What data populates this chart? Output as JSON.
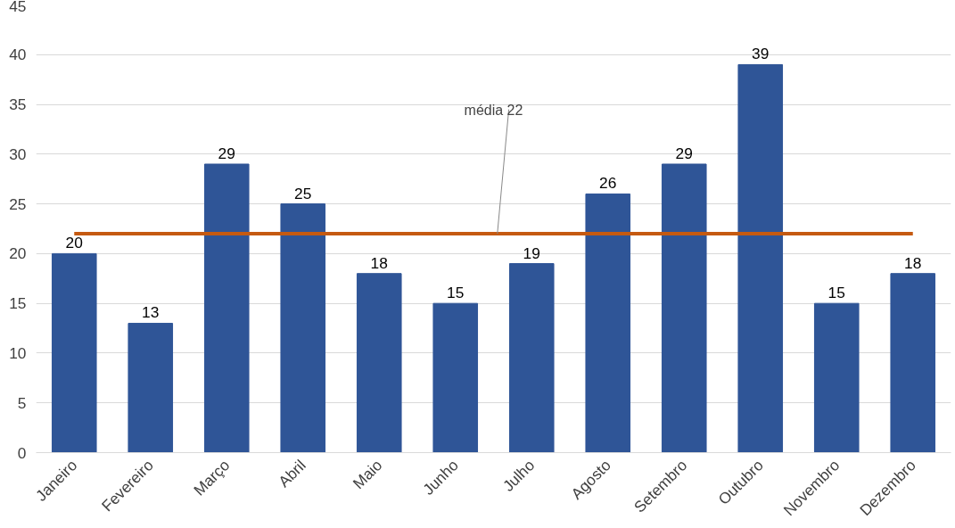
{
  "chart_data": {
    "type": "bar",
    "categories": [
      "Janeiro",
      "Fevereiro",
      "Março",
      "Abril",
      "Maio",
      "Junho",
      "Julho",
      "Agosto",
      "Setembro",
      "Outubro",
      "Novembro",
      "Dezembro"
    ],
    "values": [
      20,
      13,
      29,
      25,
      18,
      15,
      19,
      26,
      29,
      39,
      15,
      18
    ],
    "color": "#2f5597",
    "ylim": [
      0,
      45
    ],
    "yticks": [
      0,
      5,
      10,
      15,
      20,
      25,
      30,
      35,
      40,
      45
    ],
    "grid": "y",
    "data_labels": true,
    "ref_lines": [
      {
        "axis": "y",
        "value": 22,
        "label": "média 22",
        "color": "#c55a11"
      }
    ]
  }
}
